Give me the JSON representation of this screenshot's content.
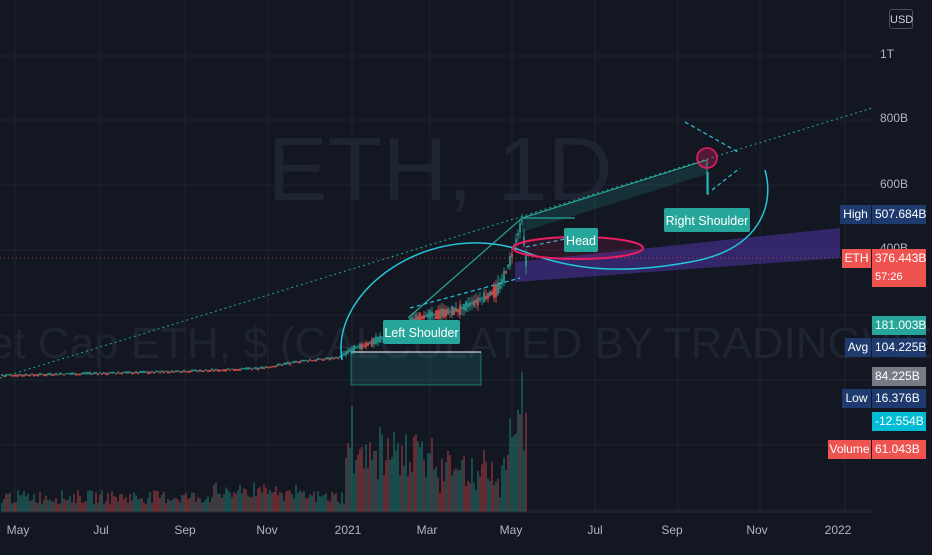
{
  "chart": {
    "currency_button": "USD",
    "watermark_symbol": "ETH, 1D",
    "watermark_description": "Market Cap ETH, $ (CALCULATED BY TRADINGVIEW)"
  },
  "colors": {
    "background": "#131722",
    "grid": "#1f2330",
    "up": "#26a69a",
    "down": "#ef5350",
    "pattern_line": "#26c6da",
    "annotation_ellipse": "#e91e63",
    "channel_fill": "#5b3cc4"
  },
  "chart_data": {
    "type": "candlestick",
    "x_ticks": [
      "May",
      "Jul",
      "Sep",
      "Nov",
      "2021",
      "Mar",
      "May",
      "Jul",
      "Sep",
      "Nov",
      "2022"
    ],
    "y_ticks": [
      "1T",
      "800B",
      "600B",
      "400B"
    ],
    "annotations": [
      "Left Shoulder",
      "Head",
      "Right Shoulder"
    ],
    "price_scale_tags": [
      {
        "label": "High",
        "value": "507.684B"
      },
      {
        "label": "ETH",
        "value": "376.443B",
        "sub": "57:26"
      },
      {
        "label": "",
        "value": "181.003B"
      },
      {
        "label": "Avg",
        "value": "104.225B"
      },
      {
        "label": "",
        "value": "84.225B"
      },
      {
        "label": "Low",
        "value": "16.376B"
      },
      {
        "label": "",
        "value": "-12.554B"
      },
      {
        "label": "Volume",
        "value": "61.043B"
      }
    ],
    "price_series_approx": [
      {
        "date": "2020-04",
        "cap": 20
      },
      {
        "date": "2020-06",
        "cap": 26
      },
      {
        "date": "2020-08",
        "cap": 45
      },
      {
        "date": "2020-10",
        "cap": 42
      },
      {
        "date": "2020-12",
        "cap": 70
      },
      {
        "date": "2021-01",
        "cap": 140
      },
      {
        "date": "2021-02",
        "cap": 180
      },
      {
        "date": "2021-03",
        "cap": 200
      },
      {
        "date": "2021-04",
        "cap": 300
      },
      {
        "date": "2021-05",
        "cap": 490
      },
      {
        "date": "2021-05-20",
        "cap": 376
      }
    ]
  }
}
